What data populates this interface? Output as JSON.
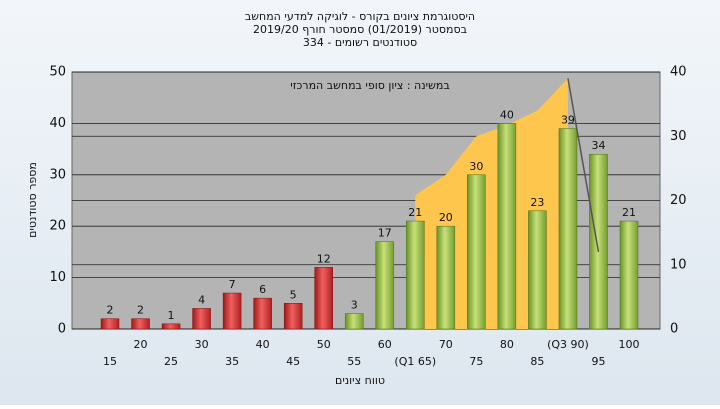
{
  "chart_data": {
    "type": "bar",
    "title": [
      "היסטוגרמת ציונים בקורס - לוגיקה למדעי המחשב",
      "בסמסטר  (01/2019)  סמסטר חורף  2019/20",
      "סטודנטים רשומים - 334"
    ],
    "annotation": "במשינה : ציון סופי במחשב המרכזי",
    "xlabel": "טווח ציונים",
    "ylabel": "מספר סטודנטים",
    "categories": [
      "15",
      "20",
      "25",
      "30",
      "35",
      "40",
      "45",
      "50",
      "55",
      "60",
      "(Q1 65)",
      "70",
      "75",
      "80",
      "85",
      "(Q3 90)",
      "95",
      "100"
    ],
    "series": [
      {
        "type": "bar",
        "color": "#e03a3a",
        "values": [
          2,
          2,
          1,
          4,
          7,
          6,
          5,
          12,
          null,
          null,
          null,
          null,
          null,
          null,
          null,
          null,
          null,
          null
        ]
      },
      {
        "type": "bar",
        "color": "#9cc44a",
        "values": [
          null,
          null,
          null,
          null,
          null,
          null,
          null,
          null,
          3,
          17,
          21,
          20,
          30,
          40,
          23,
          39,
          34,
          21
        ]
      },
      {
        "type": "area",
        "axis": "y2",
        "color": "#ffc64d",
        "values": [
          null,
          null,
          null,
          null,
          null,
          null,
          null,
          null,
          null,
          null,
          20.8,
          24,
          30,
          31.7,
          34,
          39,
          null,
          null
        ]
      },
      {
        "type": "line",
        "axis": "y2",
        "color": "#555555",
        "values": [
          null,
          null,
          null,
          null,
          null,
          null,
          null,
          null,
          null,
          null,
          null,
          null,
          null,
          null,
          null,
          39,
          12,
          null
        ]
      }
    ],
    "ylim": [
      0,
      50
    ],
    "yticks": [
      0,
      10,
      20,
      30,
      40,
      50
    ],
    "y2lim": [
      0,
      40
    ],
    "y2ticks": [
      0,
      10,
      20,
      30,
      40
    ],
    "grid": true
  }
}
